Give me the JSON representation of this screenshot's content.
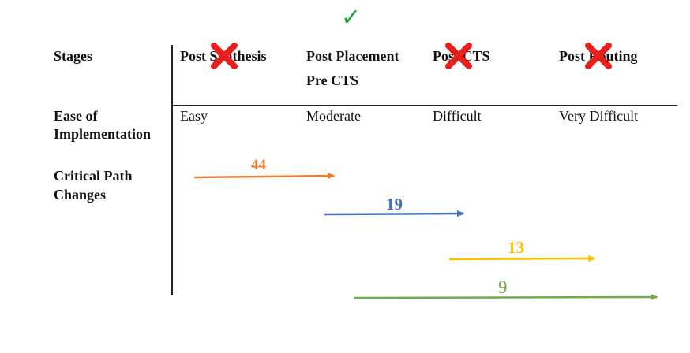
{
  "table": {
    "stages_label": "Stages",
    "stages": [
      "Post Synthesis",
      "Post Placement",
      "Post CTS",
      "Post Routing"
    ],
    "stage2_line2": "Pre CTS",
    "ease_label_line1": "Ease of",
    "ease_label_line2": "Implementation",
    "ease_values": [
      "Easy",
      "Moderate",
      "Difficult",
      "Very Difficult"
    ],
    "critical_label_line1": "Critical Path",
    "critical_label_line2": "Changes"
  },
  "status": {
    "chosen_stage": "Post Placement",
    "chosen_icon": "checkmark-icon",
    "rejected_icon": "red-x-icon",
    "check_glyph": "✓",
    "colors": {
      "check": "#1aa33b",
      "cross": "#e8201c"
    }
  },
  "arrows": [
    {
      "label": "44",
      "color": "#ed7d31"
    },
    {
      "label": "19",
      "color": "#4472c4"
    },
    {
      "label": "13",
      "color": "#ffc000"
    },
    {
      "label": "9",
      "color": "#70ad47"
    }
  ]
}
